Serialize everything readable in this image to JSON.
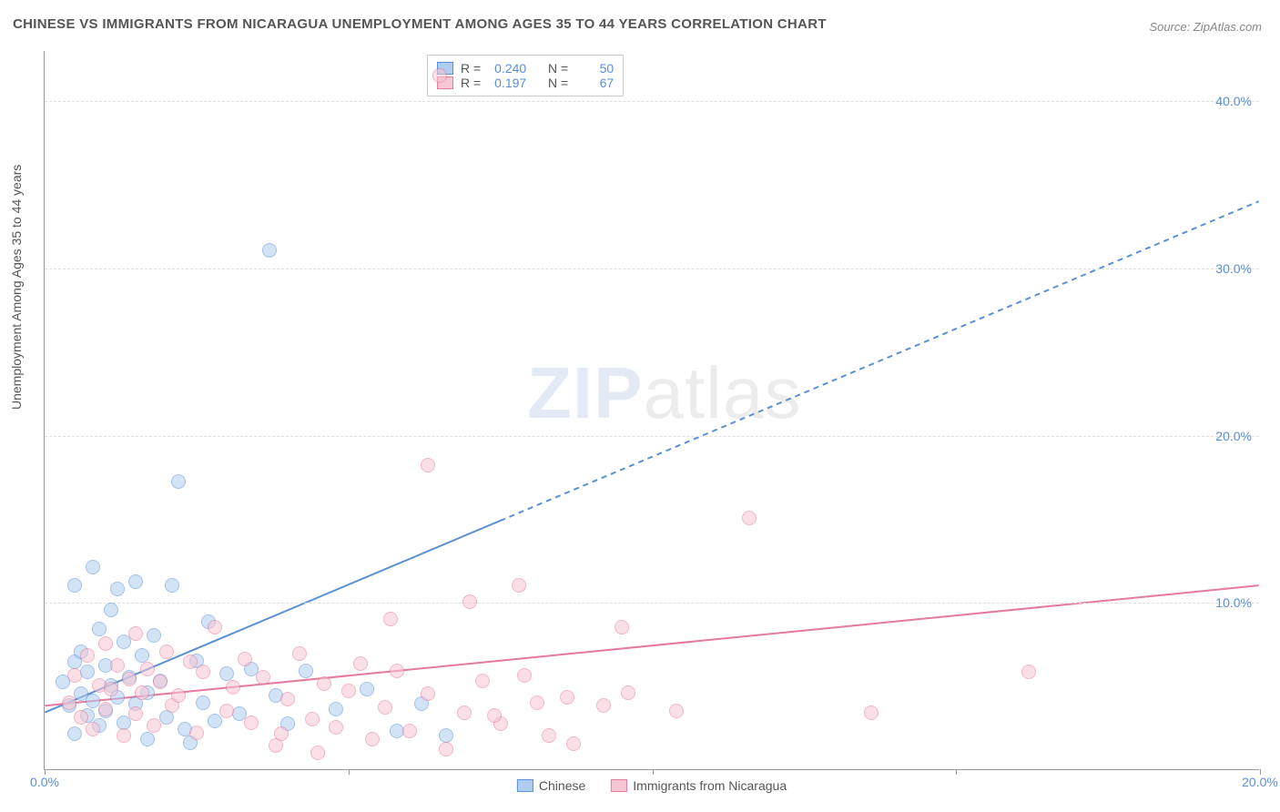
{
  "title": "CHINESE VS IMMIGRANTS FROM NICARAGUA UNEMPLOYMENT AMONG AGES 35 TO 44 YEARS CORRELATION CHART",
  "source": "Source: ZipAtlas.com",
  "y_axis_label": "Unemployment Among Ages 35 to 44 years",
  "watermark": {
    "part1": "ZIP",
    "part2": "atlas"
  },
  "chart": {
    "type": "scatter",
    "background_color": "#ffffff",
    "grid_color": "#dddddd",
    "axis_color": "#999999",
    "tick_label_color": "#5b8fd6",
    "xlim": [
      0,
      20
    ],
    "ylim": [
      0,
      43
    ],
    "x_ticks": [
      0,
      5,
      10,
      15,
      20
    ],
    "x_tick_labels": [
      "0.0%",
      "",
      "",
      "",
      "20.0%"
    ],
    "y_ticks": [
      10,
      20,
      30,
      40
    ],
    "y_tick_labels": [
      "10.0%",
      "20.0%",
      "30.0%",
      "40.0%"
    ],
    "marker_radius": 8,
    "marker_opacity": 0.55,
    "series": [
      {
        "key": "chinese",
        "label": "Chinese",
        "color_fill": "#aecdf0",
        "color_stroke": "#5b8fd6",
        "r_value": "0.240",
        "n_value": "50",
        "trend": {
          "x1": 0,
          "y1": 3.4,
          "x2": 20,
          "y2": 34.0,
          "solid_until_x": 7.5,
          "width": 2
        },
        "points": [
          [
            0.3,
            5.2
          ],
          [
            0.4,
            3.8
          ],
          [
            0.5,
            6.4
          ],
          [
            0.5,
            2.1
          ],
          [
            0.6,
            4.5
          ],
          [
            0.6,
            7.0
          ],
          [
            0.7,
            3.2
          ],
          [
            0.7,
            5.8
          ],
          [
            0.8,
            12.1
          ],
          [
            0.8,
            4.1
          ],
          [
            0.9,
            2.6
          ],
          [
            0.9,
            8.4
          ],
          [
            1.0,
            6.2
          ],
          [
            1.0,
            3.5
          ],
          [
            1.1,
            5.0
          ],
          [
            1.1,
            9.5
          ],
          [
            1.2,
            10.8
          ],
          [
            1.2,
            4.3
          ],
          [
            1.3,
            7.6
          ],
          [
            1.3,
            2.8
          ],
          [
            1.4,
            5.5
          ],
          [
            1.5,
            11.2
          ],
          [
            1.5,
            3.9
          ],
          [
            1.6,
            6.8
          ],
          [
            1.7,
            4.6
          ],
          [
            1.7,
            1.8
          ],
          [
            1.8,
            8.0
          ],
          [
            1.9,
            5.3
          ],
          [
            2.0,
            3.1
          ],
          [
            2.1,
            11.0
          ],
          [
            2.2,
            17.2
          ],
          [
            2.3,
            2.4
          ],
          [
            2.4,
            1.6
          ],
          [
            2.5,
            6.5
          ],
          [
            2.6,
            4.0
          ],
          [
            2.7,
            8.8
          ],
          [
            2.8,
            2.9
          ],
          [
            3.0,
            5.7
          ],
          [
            3.2,
            3.3
          ],
          [
            3.4,
            6.0
          ],
          [
            3.7,
            31.0
          ],
          [
            3.8,
            4.4
          ],
          [
            4.0,
            2.7
          ],
          [
            4.3,
            5.9
          ],
          [
            4.8,
            3.6
          ],
          [
            5.3,
            4.8
          ],
          [
            5.8,
            2.3
          ],
          [
            6.2,
            3.9
          ],
          [
            6.6,
            2.0
          ],
          [
            0.5,
            11.0
          ]
        ]
      },
      {
        "key": "nicaragua",
        "label": "Immigrants from Nicaragua",
        "color_fill": "#f6c6d2",
        "color_stroke": "#e67a9a",
        "r_value": "0.197",
        "n_value": "67",
        "trend": {
          "x1": 0,
          "y1": 3.8,
          "x2": 20,
          "y2": 11.0,
          "solid_until_x": 20,
          "width": 2
        },
        "points": [
          [
            0.4,
            4.0
          ],
          [
            0.5,
            5.6
          ],
          [
            0.6,
            3.1
          ],
          [
            0.7,
            6.8
          ],
          [
            0.8,
            2.4
          ],
          [
            0.9,
            5.0
          ],
          [
            1.0,
            7.5
          ],
          [
            1.0,
            3.6
          ],
          [
            1.1,
            4.8
          ],
          [
            1.2,
            6.2
          ],
          [
            1.3,
            2.0
          ],
          [
            1.4,
            5.4
          ],
          [
            1.5,
            8.1
          ],
          [
            1.5,
            3.3
          ],
          [
            1.6,
            4.6
          ],
          [
            1.7,
            6.0
          ],
          [
            1.8,
            2.6
          ],
          [
            1.9,
            5.2
          ],
          [
            2.0,
            7.0
          ],
          [
            2.1,
            3.8
          ],
          [
            2.2,
            4.4
          ],
          [
            2.4,
            6.4
          ],
          [
            2.5,
            2.2
          ],
          [
            2.6,
            5.8
          ],
          [
            2.8,
            8.5
          ],
          [
            3.0,
            3.5
          ],
          [
            3.1,
            4.9
          ],
          [
            3.3,
            6.6
          ],
          [
            3.4,
            2.8
          ],
          [
            3.6,
            5.5
          ],
          [
            3.8,
            1.4
          ],
          [
            4.0,
            4.2
          ],
          [
            4.2,
            6.9
          ],
          [
            4.4,
            3.0
          ],
          [
            4.6,
            5.1
          ],
          [
            4.8,
            2.5
          ],
          [
            5.0,
            4.7
          ],
          [
            5.2,
            6.3
          ],
          [
            5.4,
            1.8
          ],
          [
            5.6,
            3.7
          ],
          [
            5.8,
            5.9
          ],
          [
            6.0,
            2.3
          ],
          [
            6.3,
            4.5
          ],
          [
            6.6,
            1.2
          ],
          [
            6.9,
            3.4
          ],
          [
            7.2,
            5.3
          ],
          [
            7.5,
            2.7
          ],
          [
            7.8,
            11.0
          ],
          [
            8.1,
            4.0
          ],
          [
            6.3,
            18.2
          ],
          [
            6.5,
            41.5
          ],
          [
            7.0,
            10.0
          ],
          [
            7.4,
            3.2
          ],
          [
            7.9,
            5.6
          ],
          [
            8.3,
            2.0
          ],
          [
            8.6,
            4.3
          ],
          [
            8.7,
            1.5
          ],
          [
            9.2,
            3.8
          ],
          [
            9.5,
            8.5
          ],
          [
            9.6,
            4.6
          ],
          [
            10.4,
            3.5
          ],
          [
            11.6,
            15.0
          ],
          [
            13.6,
            3.4
          ],
          [
            16.2,
            5.8
          ],
          [
            4.5,
            1.0
          ],
          [
            5.7,
            9.0
          ],
          [
            3.9,
            2.1
          ]
        ]
      }
    ]
  },
  "legend_top": {
    "r_label": "R =",
    "n_label": "N ="
  },
  "legend_bottom": {
    "items": [
      "chinese",
      "nicaragua"
    ]
  }
}
